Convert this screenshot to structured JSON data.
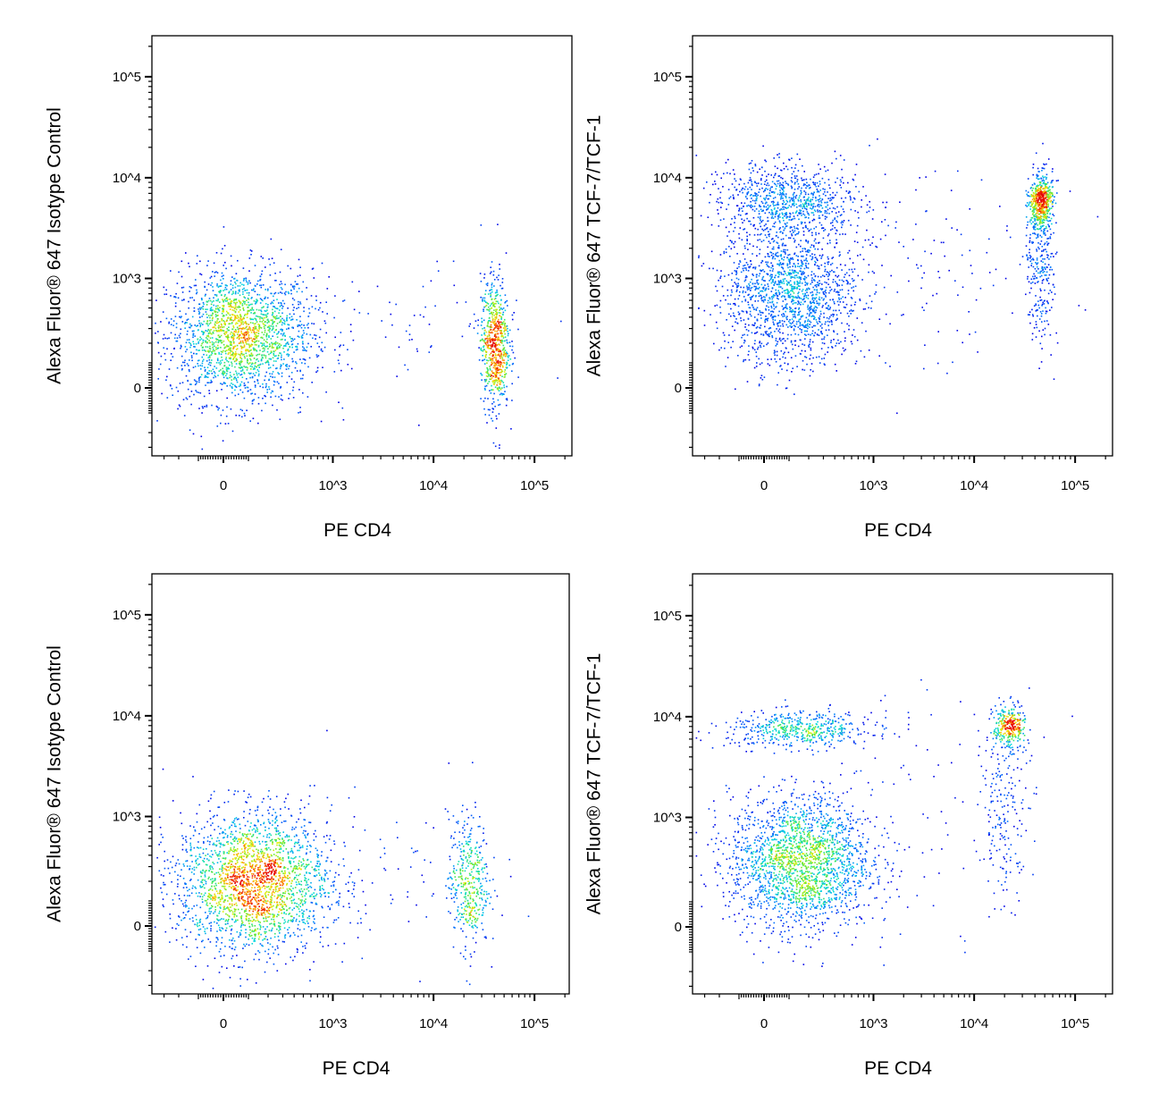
{
  "chart_data": [
    {
      "type": "scatter",
      "xlabel": "PE CD4",
      "ylabel": "Alexa Fluor® 647 Isotype Control",
      "x_scale": "biexponential",
      "y_scale": "biexponential",
      "x_ticks": [
        "0",
        "10^3",
        "10^4",
        "10^5"
      ],
      "y_ticks": [
        "0",
        "10^3",
        "10^4",
        "10^5"
      ],
      "xlim": [
        -300,
        200000
      ],
      "ylim": [
        -300,
        200000
      ],
      "coloring": "density (blue-green-yellow-red)",
      "populations": [
        {
          "x": 60,
          "y": 250,
          "spread_decades": [
            0.36,
            0.33
          ],
          "count": 2000
        },
        {
          "x": 40000,
          "y": 200,
          "spread_decades": [
            0.07,
            0.33
          ],
          "count": 700
        },
        {
          "x": 4000,
          "y": 300,
          "spread_decades": [
            0.7,
            0.35
          ],
          "count": 90
        }
      ]
    },
    {
      "type": "scatter",
      "xlabel": "PE CD4",
      "ylabel": "Alexa Fluor® 647 TCF-7/TCF-1",
      "x_scale": "biexponential",
      "y_scale": "biexponential",
      "x_ticks": [
        "0",
        "10^3",
        "10^4",
        "10^5"
      ],
      "y_ticks": [
        "0",
        "10^3",
        "10^4",
        "10^5"
      ],
      "xlim": [
        -300,
        200000
      ],
      "ylim": [
        -300,
        200000
      ],
      "coloring": "density (blue-green-yellow-red)",
      "populations": [
        {
          "x": 100,
          "y": 700,
          "spread_decades": [
            0.34,
            0.35
          ],
          "count": 1600
        },
        {
          "x": 100,
          "y": 6000,
          "spread_decades": [
            0.34,
            0.18
          ],
          "count": 800
        },
        {
          "x": 45000,
          "y": 6000,
          "spread_decades": [
            0.06,
            0.13
          ],
          "count": 500
        },
        {
          "x": 45000,
          "y": 1500,
          "spread_decades": [
            0.07,
            0.4
          ],
          "count": 300
        },
        {
          "x": 4000,
          "y": 1500,
          "spread_decades": [
            0.7,
            0.5
          ],
          "count": 120
        }
      ]
    },
    {
      "type": "scatter",
      "xlabel": "PE CD4",
      "ylabel": "Alexa Fluor® 647 Isotype Control",
      "x_scale": "biexponential",
      "y_scale": "biexponential",
      "x_ticks": [
        "0",
        "10^3",
        "10^4",
        "10^5"
      ],
      "y_ticks": [
        "0",
        "10^3",
        "10^4",
        "10^5"
      ],
      "xlim": [
        -300,
        200000
      ],
      "ylim": [
        -300,
        200000
      ],
      "coloring": "density (blue-green-yellow-red)",
      "populations": [
        {
          "x": 120,
          "y": 200,
          "spread_decades": [
            0.38,
            0.35
          ],
          "count": 2300
        },
        {
          "x": 22000,
          "y": 200,
          "spread_decades": [
            0.1,
            0.33
          ],
          "count": 400
        },
        {
          "x": 3000,
          "y": 250,
          "spread_decades": [
            0.6,
            0.35
          ],
          "count": 80
        }
      ]
    },
    {
      "type": "scatter",
      "xlabel": "PE CD4",
      "ylabel": "Alexa Fluor® 647 TCF-7/TCF-1",
      "x_scale": "biexponential",
      "y_scale": "biexponential",
      "x_ticks": [
        "0",
        "10^3",
        "10^4",
        "10^5"
      ],
      "y_ticks": [
        "0",
        "10^3",
        "10^4",
        "10^5"
      ],
      "xlim": [
        -300,
        200000
      ],
      "ylim": [
        -300,
        200000
      ],
      "coloring": "density (blue-green-yellow-red)",
      "populations": [
        {
          "x": 150,
          "y": 350,
          "spread_decades": [
            0.35,
            0.33
          ],
          "count": 2100
        },
        {
          "x": 150,
          "y": 7500,
          "spread_decades": [
            0.36,
            0.09
          ],
          "count": 500
        },
        {
          "x": 22000,
          "y": 8000,
          "spread_decades": [
            0.08,
            0.11
          ],
          "count": 300
        },
        {
          "x": 20000,
          "y": 1200,
          "spread_decades": [
            0.12,
            0.45
          ],
          "count": 200
        },
        {
          "x": 3000,
          "y": 1500,
          "spread_decades": [
            0.6,
            0.6
          ],
          "count": 80
        }
      ]
    }
  ]
}
